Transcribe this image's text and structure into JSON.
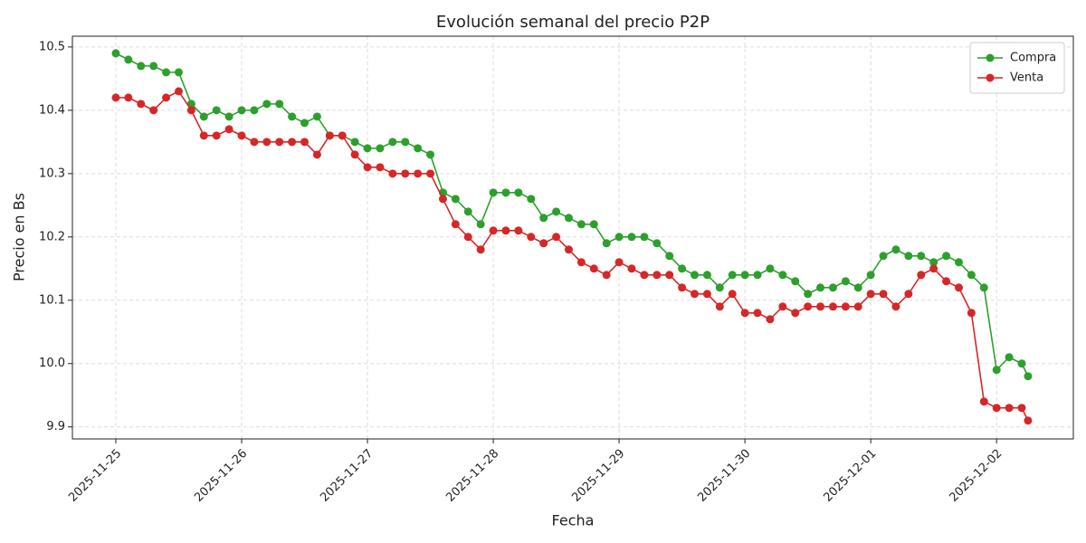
{
  "chart_data": {
    "type": "line",
    "title": "Evolución semanal del precio P2P",
    "xlabel": "Fecha",
    "ylabel": "Precio en Bs",
    "x": [
      0,
      0.1,
      0.2,
      0.3,
      0.4,
      0.5,
      0.6,
      0.7,
      0.8,
      0.9,
      1,
      1.1,
      1.2,
      1.3,
      1.4,
      1.5,
      1.6,
      1.7,
      1.8,
      1.9,
      2,
      2.1,
      2.2,
      2.3,
      2.4,
      2.5,
      2.6,
      2.7,
      2.8,
      2.9,
      3,
      3.1,
      3.2,
      3.3,
      3.4,
      3.5,
      3.6,
      3.7,
      3.8,
      3.9,
      4,
      4.1,
      4.2,
      4.3,
      4.4,
      4.5,
      4.6,
      4.7,
      4.8,
      4.9,
      5,
      5.1,
      5.2,
      5.3,
      5.4,
      5.5,
      5.6,
      5.7,
      5.8,
      5.9,
      6,
      6.1,
      6.2,
      6.3,
      6.4,
      6.5,
      6.6,
      6.7,
      6.8,
      6.9,
      7,
      7.1,
      7.2,
      7.25
    ],
    "series": [
      {
        "name": "Compra",
        "color": "#2ca02c",
        "values": [
          10.49,
          10.48,
          10.47,
          10.47,
          10.46,
          10.46,
          10.41,
          10.39,
          10.4,
          10.39,
          10.4,
          10.4,
          10.41,
          10.41,
          10.39,
          10.38,
          10.39,
          10.36,
          10.36,
          10.35,
          10.34,
          10.34,
          10.35,
          10.35,
          10.34,
          10.33,
          10.27,
          10.26,
          10.24,
          10.22,
          10.27,
          10.27,
          10.27,
          10.26,
          10.23,
          10.24,
          10.23,
          10.22,
          10.22,
          10.19,
          10.2,
          10.2,
          10.2,
          10.19,
          10.17,
          10.15,
          10.14,
          10.14,
          10.12,
          10.14,
          10.14,
          10.14,
          10.15,
          10.14,
          10.13,
          10.11,
          10.12,
          10.12,
          10.13,
          10.12,
          10.14,
          10.17,
          10.18,
          10.17,
          10.17,
          10.16,
          10.17,
          10.16,
          10.14,
          10.12,
          9.99,
          10.01,
          10.0,
          9.98
        ]
      },
      {
        "name": "Venta",
        "color": "#d62728",
        "values": [
          10.42,
          10.42,
          10.41,
          10.4,
          10.42,
          10.43,
          10.4,
          10.36,
          10.36,
          10.37,
          10.36,
          10.35,
          10.35,
          10.35,
          10.35,
          10.35,
          10.33,
          10.36,
          10.36,
          10.33,
          10.31,
          10.31,
          10.3,
          10.3,
          10.3,
          10.3,
          10.26,
          10.22,
          10.2,
          10.18,
          10.21,
          10.21,
          10.21,
          10.2,
          10.19,
          10.2,
          10.18,
          10.16,
          10.15,
          10.14,
          10.16,
          10.15,
          10.14,
          10.14,
          10.14,
          10.12,
          10.11,
          10.11,
          10.09,
          10.11,
          10.08,
          10.08,
          10.07,
          10.09,
          10.08,
          10.09,
          10.09,
          10.09,
          10.09,
          10.09,
          10.11,
          10.11,
          10.09,
          10.11,
          10.14,
          10.15,
          10.13,
          10.12,
          10.08,
          9.94,
          9.93,
          9.93,
          9.93,
          9.91
        ]
      }
    ],
    "xlim": [
      -0.345,
      7.61
    ],
    "xticks": [
      {
        "value": 0,
        "label": "2025-11-25"
      },
      {
        "value": 1,
        "label": "2025-11-26"
      },
      {
        "value": 2,
        "label": "2025-11-27"
      },
      {
        "value": 3,
        "label": "2025-11-28"
      },
      {
        "value": 4,
        "label": "2025-11-29"
      },
      {
        "value": 5,
        "label": "2025-11-30"
      },
      {
        "value": 6,
        "label": "2025-12-01"
      },
      {
        "value": 7,
        "label": "2025-12-02"
      }
    ],
    "ylim": [
      9.881,
      10.517
    ],
    "yticks": [
      9.9,
      {
        "value": 10,
        "label": "10.0"
      },
      10.1,
      10.2,
      10.3,
      10.4,
      10.5
    ],
    "grid": true,
    "legend": "upper right",
    "markers": true
  }
}
